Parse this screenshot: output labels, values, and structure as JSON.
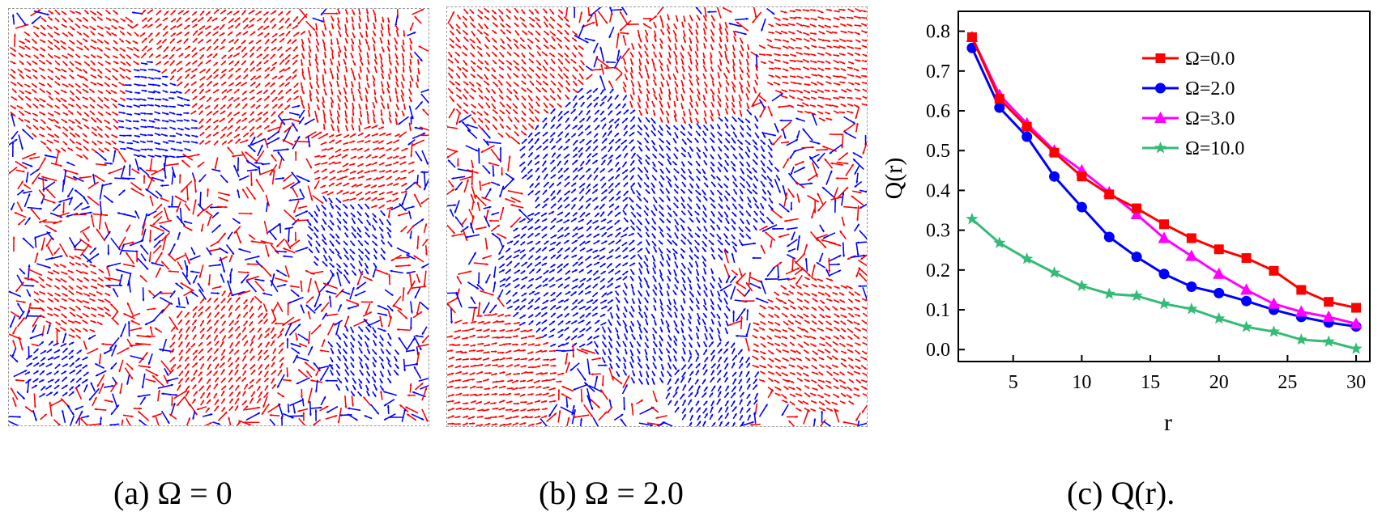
{
  "panels": [
    {
      "caption": "(a) Ω = 0",
      "arrow_colors": [
        "#ff0000",
        "#0000ff"
      ]
    },
    {
      "caption": "(b) Ω = 2.0",
      "arrow_colors": [
        "#ff0000",
        "#0000ff"
      ]
    }
  ],
  "chart_caption": "(c) Q(r).",
  "chart_data": {
    "type": "line",
    "title": "",
    "xlabel": "r",
    "ylabel": "Q(r)",
    "xlim": [
      1,
      31
    ],
    "ylim": [
      -0.03,
      0.85
    ],
    "x_ticks": [
      5,
      10,
      15,
      20,
      25,
      30
    ],
    "y_ticks": [
      0.0,
      0.1,
      0.2,
      0.3,
      0.4,
      0.5,
      0.6,
      0.7,
      0.8
    ],
    "x": [
      2,
      4,
      6,
      8,
      10,
      12,
      14,
      16,
      18,
      20,
      22,
      24,
      26,
      28,
      30
    ],
    "grid": false,
    "legend_position": "top-right",
    "series": [
      {
        "name": "Ω=0.0",
        "color": "#ff0000",
        "marker": "square",
        "values": [
          0.785,
          0.63,
          0.56,
          0.495,
          0.435,
          0.39,
          0.355,
          0.315,
          0.28,
          0.252,
          0.23,
          0.198,
          0.15,
          0.12,
          0.105
        ]
      },
      {
        "name": "Ω=2.0",
        "color": "#0000ff",
        "marker": "circle",
        "values": [
          0.758,
          0.608,
          0.535,
          0.435,
          0.358,
          0.283,
          0.233,
          0.19,
          0.158,
          0.142,
          0.122,
          0.1,
          0.082,
          0.068,
          0.058
        ]
      },
      {
        "name": "Ω=3.0",
        "color": "#ff00ff",
        "marker": "triangle",
        "values": [
          0.785,
          0.64,
          0.568,
          0.5,
          0.45,
          0.395,
          0.34,
          0.28,
          0.235,
          0.19,
          0.15,
          0.115,
          0.095,
          0.082,
          0.065
        ]
      },
      {
        "name": "Ω=10.0",
        "color": "#33bb77",
        "marker": "star",
        "values": [
          0.328,
          0.268,
          0.228,
          0.193,
          0.16,
          0.14,
          0.135,
          0.115,
          0.102,
          0.078,
          0.057,
          0.045,
          0.025,
          0.02,
          0.002
        ]
      }
    ]
  }
}
